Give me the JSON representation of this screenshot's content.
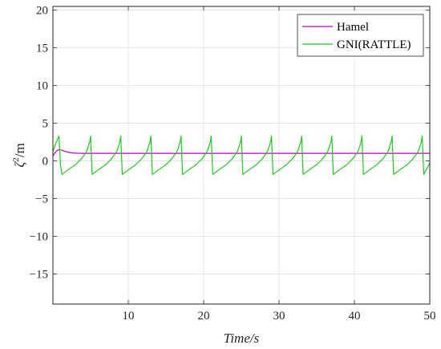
{
  "chart_data": {
    "type": "line",
    "title": "",
    "xlabel": "Time/s",
    "ylabel_base": "ζ",
    "ylabel_sup": "2",
    "ylabel_unit": "/m",
    "xlim": [
      0,
      50
    ],
    "ylim": [
      -19,
      20.5
    ],
    "xticks": [
      10,
      20,
      30,
      40,
      50
    ],
    "yticks": [
      -15,
      -10,
      -5,
      0,
      5,
      10,
      15,
      20
    ],
    "grid": true,
    "legend_position": "top-right",
    "series": [
      {
        "name": "Hamel",
        "color": "#c000c0",
        "x": [
          0,
          0.2,
          0.5,
          0.8,
          1.1,
          1.5,
          2.0,
          2.5,
          3.0,
          3.5,
          4.0,
          5.0,
          10,
          20,
          30,
          40,
          50
        ],
        "y": [
          0.6,
          1.0,
          1.35,
          1.5,
          1.45,
          1.3,
          1.15,
          1.08,
          1.03,
          1.01,
          1.0,
          1.0,
          1.0,
          1.0,
          1.0,
          1.0,
          1.0
        ]
      },
      {
        "name": "GNI(RATTLE)",
        "color": "#1ec81e",
        "x": [
          0,
          0.4,
          0.8,
          1.0,
          1.2,
          2.0,
          3.0,
          3.8,
          4.5,
          4.9,
          5.0,
          5.2,
          6.0,
          7.0,
          7.8,
          8.5,
          8.9,
          9.0,
          9.2,
          10.0,
          11.0,
          11.8,
          12.5,
          12.9,
          13.0,
          13.2,
          14.0,
          15.0,
          15.8,
          16.5,
          16.9,
          17.0,
          17.2,
          18.0,
          19.0,
          19.8,
          20.5,
          20.9,
          21.0,
          21.2,
          22.0,
          23.0,
          23.8,
          24.5,
          24.9,
          25.0,
          25.2,
          26.0,
          27.0,
          27.8,
          28.5,
          28.9,
          29.0,
          29.2,
          30.0,
          31.0,
          31.8,
          32.5,
          32.9,
          33.0,
          33.2,
          34.0,
          35.0,
          35.8,
          36.5,
          36.9,
          37.0,
          37.2,
          38.0,
          39.0,
          39.8,
          40.5,
          40.9,
          41.0,
          41.2,
          42.0,
          43.0,
          43.8,
          44.5,
          44.9,
          45.0,
          45.2,
          46.0,
          47.0,
          47.8,
          48.5,
          48.9,
          49.0,
          49.2,
          50.0
        ],
        "y": [
          1.2,
          2.4,
          3.3,
          -0.5,
          -1.8,
          -1.2,
          -0.5,
          0.3,
          1.3,
          2.6,
          3.3,
          -1.8,
          -1.2,
          -0.5,
          0.3,
          1.3,
          2.6,
          3.3,
          -1.8,
          -1.2,
          -0.5,
          0.3,
          1.3,
          2.6,
          3.3,
          -1.8,
          -1.2,
          -0.5,
          0.3,
          1.3,
          2.6,
          3.3,
          -1.8,
          -1.2,
          -0.5,
          0.3,
          1.3,
          2.6,
          3.3,
          -1.8,
          -1.2,
          -0.5,
          0.3,
          1.3,
          2.6,
          3.3,
          -1.8,
          -1.2,
          -0.5,
          0.3,
          1.3,
          2.6,
          3.3,
          -1.8,
          -1.2,
          -0.5,
          0.3,
          1.3,
          2.6,
          3.3,
          -1.8,
          -1.2,
          -0.5,
          0.3,
          1.3,
          2.6,
          3.3,
          -1.8,
          -1.2,
          -0.5,
          0.3,
          1.3,
          2.6,
          3.3,
          -1.8,
          -1.2,
          -0.5,
          0.3,
          1.3,
          2.6,
          3.3,
          -1.8,
          -1.2,
          -0.5,
          0.3,
          1.3,
          2.6,
          3.3,
          -1.8,
          -0.3
        ]
      }
    ]
  }
}
